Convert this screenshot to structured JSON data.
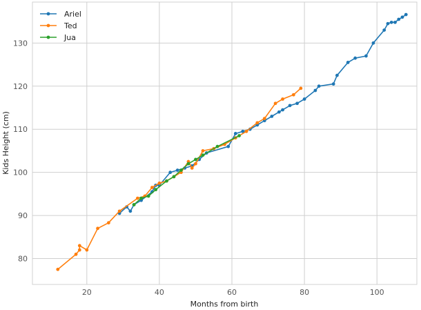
{
  "chart_data": {
    "type": "line",
    "title": "",
    "xlabel": "Months from birth",
    "ylabel": "Kids Height (cm)",
    "xlim": [
      5,
      111
    ],
    "ylim": [
      74,
      139.5
    ],
    "xticks": [
      20,
      40,
      60,
      80,
      100
    ],
    "yticks": [
      80,
      90,
      100,
      110,
      120,
      130
    ],
    "grid": true,
    "legend_position": "top-left",
    "series": [
      {
        "name": "Ariel",
        "color": "#1f77b4",
        "x": [
          29,
          31,
          32,
          33,
          35,
          38,
          39,
          40,
          43,
          45,
          47,
          49,
          51,
          53,
          59,
          61,
          63,
          65,
          67,
          69,
          71,
          73,
          74,
          76,
          78,
          80,
          83,
          84,
          88,
          89,
          92,
          94,
          97,
          99,
          102,
          103,
          104,
          105,
          106,
          107,
          108
        ],
        "y": [
          90.5,
          92,
          91,
          92.5,
          93.5,
          95.5,
          97,
          97,
          100,
          100.5,
          101,
          101.5,
          103,
          104.5,
          106,
          109,
          109.5,
          110,
          111,
          112,
          113,
          114,
          114.5,
          115.5,
          116,
          117,
          119,
          120,
          120.5,
          122.5,
          125.5,
          126.5,
          127,
          130,
          133,
          134.5,
          134.8,
          134.8,
          135.5,
          136,
          136.6
        ]
      },
      {
        "name": "Ted",
        "color": "#ff7f0e",
        "x": [
          12,
          17,
          18,
          18,
          20,
          23,
          26,
          29,
          34,
          36,
          38,
          40,
          42,
          44,
          46,
          48,
          49,
          50,
          52,
          55,
          58,
          61,
          64,
          67,
          69,
          72,
          74,
          77,
          79
        ],
        "y": [
          77.5,
          81,
          82,
          83,
          82,
          87,
          88.3,
          91,
          94,
          94.5,
          96.5,
          97.5,
          98,
          99,
          100,
          102.5,
          101,
          102,
          105,
          105.5,
          106.5,
          108,
          109.5,
          111.5,
          112.5,
          116,
          117,
          118,
          119.5
        ]
      },
      {
        "name": "Jua",
        "color": "#2ca02c",
        "x": [
          33,
          35,
          37,
          39,
          42,
          44,
          46,
          48,
          50,
          52,
          56,
          62
        ],
        "y": [
          92.5,
          94,
          94.5,
          96,
          98,
          99,
          100.5,
          102,
          103,
          104,
          106,
          108.5
        ]
      }
    ]
  }
}
